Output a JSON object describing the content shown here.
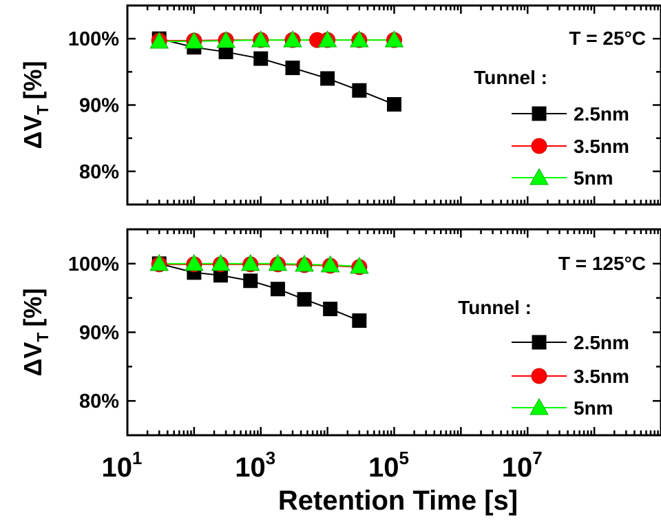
{
  "chart_data": [
    {
      "type": "line",
      "annotation": "T = 25°C",
      "legend_title": "Tunnel :",
      "legend_position": "right",
      "ylabel": "ΔV",
      "ylabel_sub": "T",
      "ylabel_unit": "[%]",
      "xlabel": "",
      "xscale": "log",
      "xlim": [
        10,
        1000000000
      ],
      "ylim": [
        75,
        105
      ],
      "yticks": [
        80,
        90,
        100
      ],
      "ytick_labels": [
        "80%",
        "90%",
        "100%"
      ],
      "series": [
        {
          "name": "2.5nm",
          "color": "#000000",
          "marker": "square",
          "x": [
            30,
            100,
            300,
            1000,
            3000,
            10000,
            30000,
            100000
          ],
          "y": [
            100,
            98.7,
            98.0,
            97.0,
            95.6,
            94.0,
            92.2,
            90.1
          ]
        },
        {
          "name": "3.5nm",
          "color": "#ff0000",
          "marker": "circle",
          "x": [
            30,
            100,
            300,
            1000,
            3000,
            7000,
            10000,
            30000,
            100000
          ],
          "y": [
            99.7,
            99.7,
            99.8,
            99.8,
            99.8,
            99.8,
            99.8,
            99.8,
            99.8
          ]
        },
        {
          "name": "5nm",
          "color": "#00ff00",
          "marker": "triangle",
          "x": [
            30,
            100,
            300,
            1000,
            3000,
            10000,
            30000,
            100000
          ],
          "y": [
            99.6,
            99.6,
            99.7,
            99.8,
            99.8,
            99.8,
            99.8,
            99.8
          ]
        }
      ]
    },
    {
      "type": "line",
      "annotation": "T = 125°C",
      "legend_title": "Tunnel :",
      "legend_position": "right",
      "ylabel": "ΔV",
      "ylabel_sub": "T",
      "ylabel_unit": "[%]",
      "xlabel": "Retention Time [s]",
      "xscale": "log",
      "xlim": [
        10,
        1000000000
      ],
      "ylim": [
        75,
        105
      ],
      "yticks": [
        80,
        90,
        100
      ],
      "ytick_labels": [
        "80%",
        "90%",
        "100%"
      ],
      "xticks": [
        10,
        1000,
        100000,
        10000000
      ],
      "xtick_bases": [
        "10",
        "10",
        "10",
        "10"
      ],
      "xtick_exps": [
        "1",
        "3",
        "5",
        "7"
      ],
      "series": [
        {
          "name": "2.5nm",
          "color": "#000000",
          "marker": "square",
          "x": [
            30,
            100,
            250,
            700,
            1800,
            4500,
            11000,
            30000
          ],
          "y": [
            100,
            98.7,
            98.3,
            97.5,
            96.3,
            94.8,
            93.4,
            91.7
          ]
        },
        {
          "name": "3.5nm",
          "color": "#ff0000",
          "marker": "circle",
          "x": [
            30,
            100,
            250,
            700,
            1800,
            4500,
            11000,
            30000
          ],
          "y": [
            99.9,
            99.9,
            99.9,
            99.9,
            99.9,
            99.8,
            99.7,
            99.5
          ]
        },
        {
          "name": "5nm",
          "color": "#00ff00",
          "marker": "triangle",
          "x": [
            30,
            100,
            250,
            700,
            1800,
            4500,
            11000,
            30000
          ],
          "y": [
            100,
            100,
            100,
            100,
            100,
            99.9,
            99.8,
            99.6
          ]
        }
      ]
    }
  ]
}
